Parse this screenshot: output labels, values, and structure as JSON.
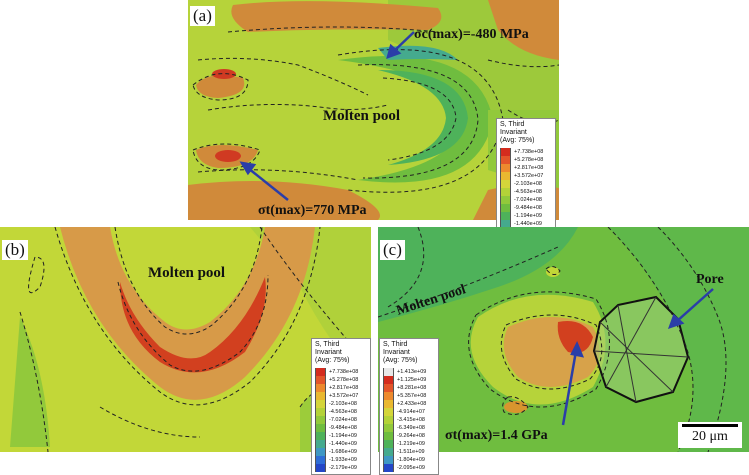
{
  "panels": {
    "a": {
      "label": "(a)",
      "region_text": "Molten pool",
      "compressive_note": "σc(max)=-480 MPa",
      "tensile_note": "σt(max)=770 MPa"
    },
    "b": {
      "label": "(b)",
      "region_text": "Molten pool"
    },
    "c": {
      "label": "(c)",
      "region_text": "Molten pool",
      "pore_text": "Pore",
      "tensile_note": "σt(max)=1.4 GPa",
      "scale_text": "20 μm"
    }
  },
  "legend_ab": {
    "title": "S, Third Invariant",
    "subtitle": "(Avg: 75%)",
    "values": [
      "+7.738e+08",
      "+5.278e+08",
      "+2.817e+08",
      "+3.572e+07",
      "-2.103e+08",
      "-4.563e+08",
      "-7.024e+08",
      "-9.484e+08",
      "-1.194e+09",
      "-1.440e+09",
      "-1.686e+09",
      "-1.933e+09",
      "-2.179e+09"
    ],
    "colors": [
      "#d42c1e",
      "#e3552a",
      "#ed8a2e",
      "#e9b830",
      "#d4d53a",
      "#b4d238",
      "#92c93b",
      "#6fbd3f",
      "#4eb25a",
      "#45aa8e",
      "#3f98c4",
      "#2f6ed6",
      "#2447c8"
    ]
  },
  "legend_c": {
    "title": "S, Third Invariant",
    "subtitle": "(Avg: 75%)",
    "values": [
      "+1.413e+09",
      "+1.125e+09",
      "+8.281e+08",
      "+5.357e+08",
      "+2.433e+08",
      "-4.914e+07",
      "-3.415e+08",
      "-6.349e+08",
      "-9.264e+08",
      "-1.219e+09",
      "-1.511e+09",
      "-1.804e+09",
      "-2.095e+09"
    ],
    "colors": [
      "#e8e8e8",
      "#d42c1e",
      "#e3552a",
      "#ed8a2e",
      "#e9b830",
      "#d4d53a",
      "#b4d238",
      "#92c93b",
      "#6fbd3f",
      "#4eb25a",
      "#45aa8e",
      "#3f98c4",
      "#2447c8"
    ]
  }
}
